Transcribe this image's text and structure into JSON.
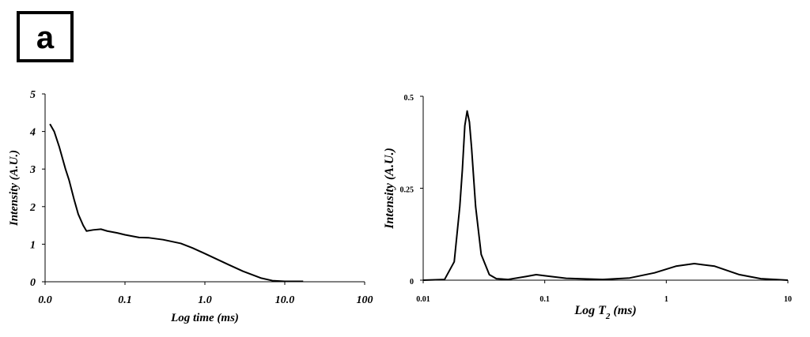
{
  "panel_label": "a",
  "chart_data": [
    {
      "type": "line",
      "xlabel": "Log time (ms)",
      "ylabel": "Intensity (A.U.)",
      "xscale": "log",
      "xlim": [
        0.01,
        100
      ],
      "ylim": [
        0,
        5
      ],
      "xticks": [
        {
          "value": 0.01,
          "label": "0.0"
        },
        {
          "value": 0.1,
          "label": "0.1"
        },
        {
          "value": 1,
          "label": "1.0"
        },
        {
          "value": 10,
          "label": "10.0"
        },
        100
      ],
      "yticks": [
        0,
        1,
        2,
        3,
        4,
        5
      ],
      "x": [
        0.0115,
        0.013,
        0.015,
        0.018,
        0.02,
        0.023,
        0.026,
        0.03,
        0.033,
        0.04,
        0.05,
        0.06,
        0.08,
        0.1,
        0.15,
        0.2,
        0.3,
        0.5,
        0.7,
        1,
        2,
        3,
        5,
        7,
        10,
        17
      ],
      "series": [
        {
          "color": "#000000",
          "values": [
            4.2,
            4.0,
            3.6,
            3.0,
            2.7,
            2.2,
            1.8,
            1.5,
            1.35,
            1.38,
            1.4,
            1.35,
            1.3,
            1.25,
            1.18,
            1.17,
            1.12,
            1.02,
            0.9,
            0.75,
            0.45,
            0.28,
            0.1,
            0.03,
            0.01,
            0.01
          ]
        }
      ]
    },
    {
      "type": "line",
      "xlabel": [
        "Log T",
        "2",
        "(ms)"
      ],
      "ylabel": "Intensity (A.U.)",
      "xscale": "log",
      "xlim": [
        0.01,
        10
      ],
      "ylim": [
        0,
        0.5
      ],
      "xticks": [
        0.01,
        0.1,
        1,
        10
      ],
      "yticks": [
        0,
        0.25,
        0.5
      ],
      "x": [
        0.01,
        0.015,
        0.018,
        0.02,
        0.021,
        0.022,
        0.023,
        0.024,
        0.025,
        0.027,
        0.03,
        0.035,
        0.04,
        0.05,
        0.07,
        0.085,
        0.1,
        0.15,
        0.3,
        0.5,
        0.8,
        1.2,
        1.7,
        2.5,
        4,
        6,
        10
      ],
      "series": [
        {
          "color": "#000000",
          "values": [
            0,
            0.002,
            0.05,
            0.2,
            0.3,
            0.42,
            0.46,
            0.43,
            0.36,
            0.2,
            0.07,
            0.015,
            0.004,
            0.002,
            0.01,
            0.015,
            0.012,
            0.005,
            0.002,
            0.006,
            0.02,
            0.038,
            0.045,
            0.038,
            0.015,
            0.004,
            0
          ]
        }
      ]
    }
  ]
}
